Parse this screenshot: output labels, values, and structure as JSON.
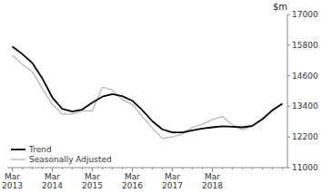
{
  "chart_data": {
    "type": "line",
    "title": "$m",
    "categories": [
      "Mar\n2013",
      null,
      null,
      null,
      "Mar\n2014",
      null,
      null,
      null,
      "Mar\n2015",
      null,
      null,
      null,
      "Mar\n2016",
      null,
      null,
      null,
      "Mar\n2017",
      null,
      null,
      null,
      "Mar\n2018",
      null,
      null,
      null,
      null,
      null,
      null,
      null
    ],
    "series": [
      {
        "name": "Seasonally Adjusted",
        "color": "#b0b0b0",
        "values": [
          15400,
          15050,
          14750,
          14100,
          13480,
          13100,
          13100,
          13220,
          13220,
          14150,
          14050,
          13650,
          13480,
          13000,
          12550,
          12150,
          12200,
          12320,
          12580,
          12700,
          12880,
          13000,
          12680,
          12480,
          12620,
          12920,
          13250,
          13520
        ]
      },
      {
        "name": "Trend",
        "color": "#000000",
        "values": [
          15750,
          15450,
          15100,
          14500,
          13750,
          13300,
          13200,
          13280,
          13550,
          13780,
          13880,
          13800,
          13620,
          13250,
          12820,
          12500,
          12380,
          12380,
          12460,
          12530,
          12580,
          12620,
          12600,
          12580,
          12640,
          12900,
          13250,
          13500
        ]
      }
    ],
    "ylim": [
      11000,
      17000
    ],
    "yticks": [
      11000,
      12200,
      13400,
      14600,
      15800,
      17000
    ],
    "grid": false,
    "legend": "lower left"
  }
}
